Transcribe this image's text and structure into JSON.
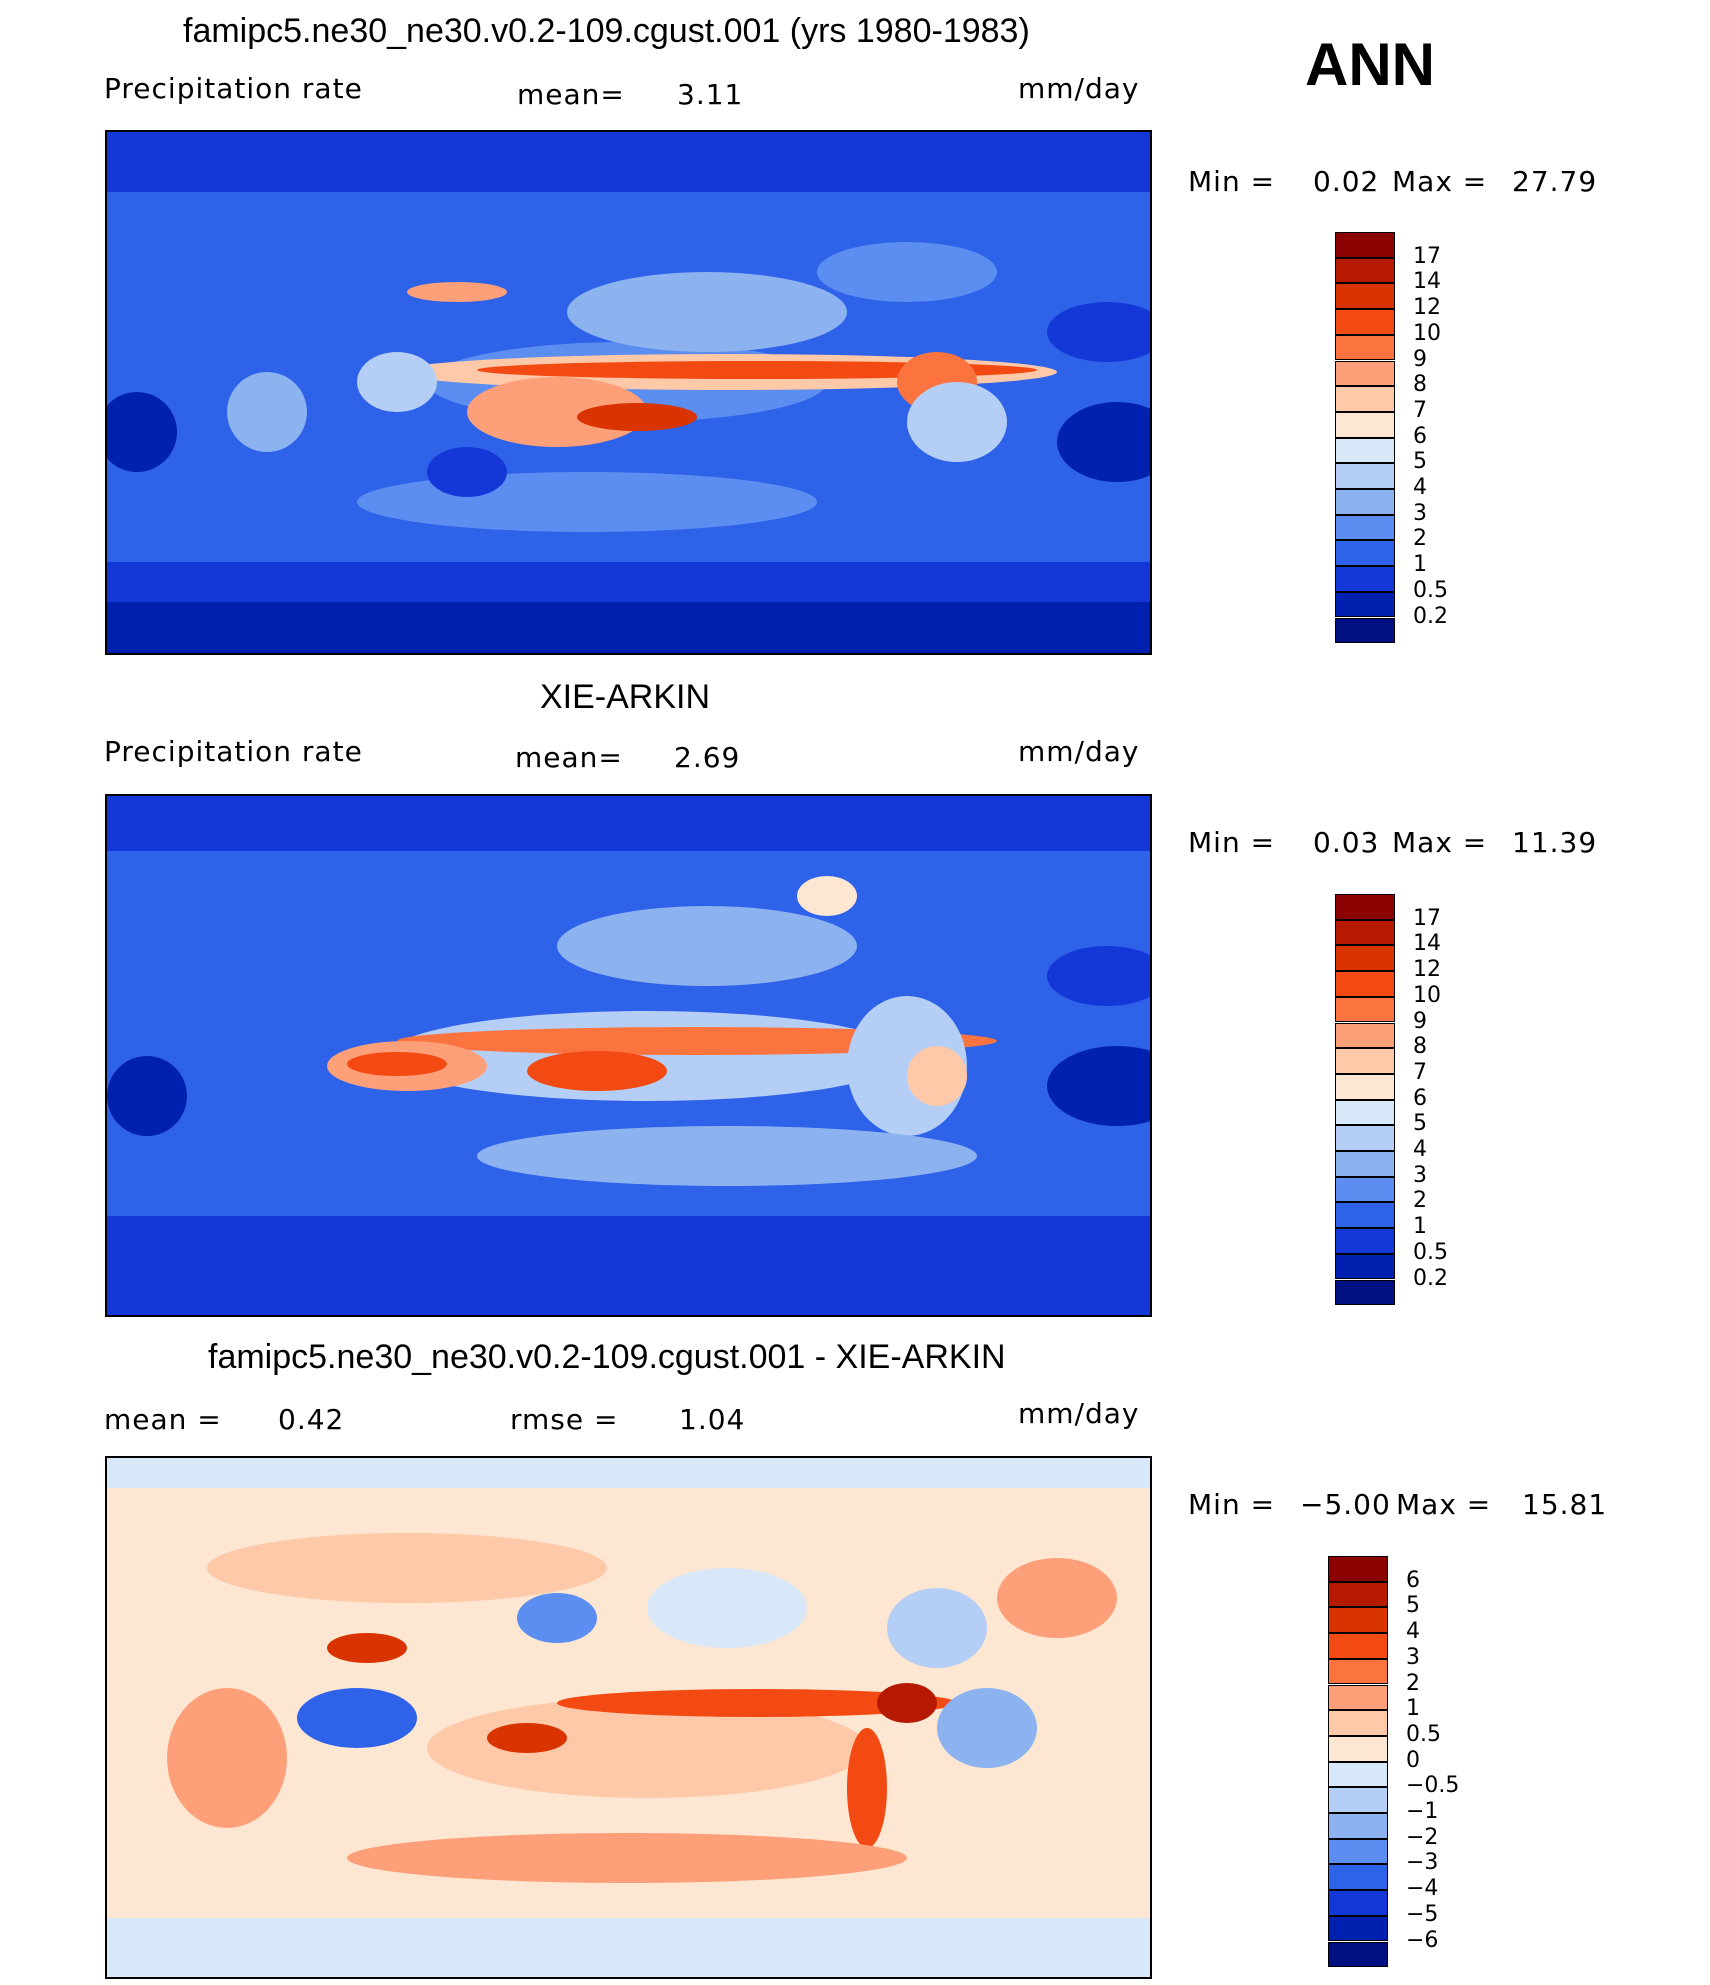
{
  "season": "ANN",
  "panels": [
    {
      "title": "famipc5.ne30_ne30.v0.2-109.cgust.001 (yrs 1980-1983)",
      "variable": "Precipitation rate",
      "stat1_label": "mean=",
      "stat1_value": "3.11",
      "stat2_label": "",
      "stat2_value": "",
      "units": "mm/day",
      "min_label": "Min =",
      "min_value": "0.02",
      "max_label": "Max =",
      "max_value": "27.79",
      "cbar_levels": [
        "17",
        "14",
        "12",
        "10",
        "9",
        "8",
        "7",
        "6",
        "5",
        "4",
        "3",
        "2",
        "1",
        "0.5",
        "0.2"
      ],
      "cbar_colors": [
        "#8b0000",
        "#b51a00",
        "#d93300",
        "#f24a12",
        "#fb7440",
        "#fda07a",
        "#fdc9a8",
        "#fde6d2",
        "#d8e8f8",
        "#b5cef5",
        "#8cb2f0",
        "#5c8df0",
        "#2e62e8",
        "#1438d8",
        "#0020b0",
        "#001080"
      ]
    },
    {
      "title": "XIE-ARKIN",
      "variable": "Precipitation rate",
      "stat1_label": "mean=",
      "stat1_value": "2.69",
      "stat2_label": "",
      "stat2_value": "",
      "units": "mm/day",
      "min_label": "Min =",
      "min_value": "0.03",
      "max_label": "Max =",
      "max_value": "11.39",
      "cbar_levels": [
        "17",
        "14",
        "12",
        "10",
        "9",
        "8",
        "7",
        "6",
        "5",
        "4",
        "3",
        "2",
        "1",
        "0.5",
        "0.2"
      ],
      "cbar_colors": [
        "#8b0000",
        "#b51a00",
        "#d93300",
        "#f24a12",
        "#fb7440",
        "#fda07a",
        "#fdc9a8",
        "#fde6d2",
        "#d8e8f8",
        "#b5cef5",
        "#8cb2f0",
        "#5c8df0",
        "#2e62e8",
        "#1438d8",
        "#0020b0",
        "#001080"
      ]
    },
    {
      "title": "famipc5.ne30_ne30.v0.2-109.cgust.001 - XIE-ARKIN",
      "variable": "",
      "stat1_label": "mean =",
      "stat1_value": "0.42",
      "stat2_label": "rmse =",
      "stat2_value": "1.04",
      "units": "mm/day",
      "min_label": "Min =",
      "min_value": "−5.00",
      "max_label": "Max =",
      "max_value": "15.81",
      "cbar_levels": [
        "6",
        "5",
        "4",
        "3",
        "2",
        "1",
        "0.5",
        "0",
        "−0.5",
        "−1",
        "−2",
        "−3",
        "−4",
        "−5",
        "−6"
      ],
      "cbar_colors": [
        "#8b0000",
        "#b51a00",
        "#d93300",
        "#f24a12",
        "#fb7440",
        "#fda07a",
        "#fdc9a8",
        "#fde6d2",
        "#d8e8f8",
        "#b5cef5",
        "#8cb2f0",
        "#5c8df0",
        "#2e62e8",
        "#1438d8",
        "#0020b0",
        "#001080"
      ]
    }
  ],
  "chart_data": [
    {
      "type": "heatmap",
      "title": "famipc5.ne30_ne30.v0.2-109.cgust.001 (yrs 1980-1983)",
      "variable": "Precipitation rate",
      "units": "mm/day",
      "mean": 3.11,
      "min": 0.02,
      "max": 27.79,
      "levels": [
        0.2,
        0.5,
        1,
        2,
        3,
        4,
        5,
        6,
        7,
        8,
        9,
        10,
        12,
        14,
        17
      ],
      "description_regions": {
        "itcz_pacific": 14,
        "west_pacific_warm_pool": 12,
        "subtropical_oceans": 0.5,
        "polar": 0.2
      }
    },
    {
      "type": "heatmap",
      "title": "XIE-ARKIN",
      "variable": "Precipitation rate",
      "units": "mm/day",
      "mean": 2.69,
      "min": 0.03,
      "max": 11.39,
      "levels": [
        0.2,
        0.5,
        1,
        2,
        3,
        4,
        5,
        6,
        7,
        8,
        9,
        10,
        12,
        14,
        17
      ],
      "description_regions": {
        "itcz_pacific": 10,
        "west_pacific_warm_pool": 10,
        "subtropical_oceans": 0.5,
        "polar": 0.2
      }
    },
    {
      "type": "heatmap",
      "title": "famipc5.ne30_ne30.v0.2-109.cgust.001 - XIE-ARKIN",
      "units": "mm/day",
      "mean": 0.42,
      "rmse": 1.04,
      "min": -5.0,
      "max": 15.81,
      "levels": [
        -6,
        -5,
        -4,
        -3,
        -2,
        -1,
        -0.5,
        0,
        0.5,
        1,
        2,
        3,
        4,
        5,
        6
      ]
    }
  ]
}
